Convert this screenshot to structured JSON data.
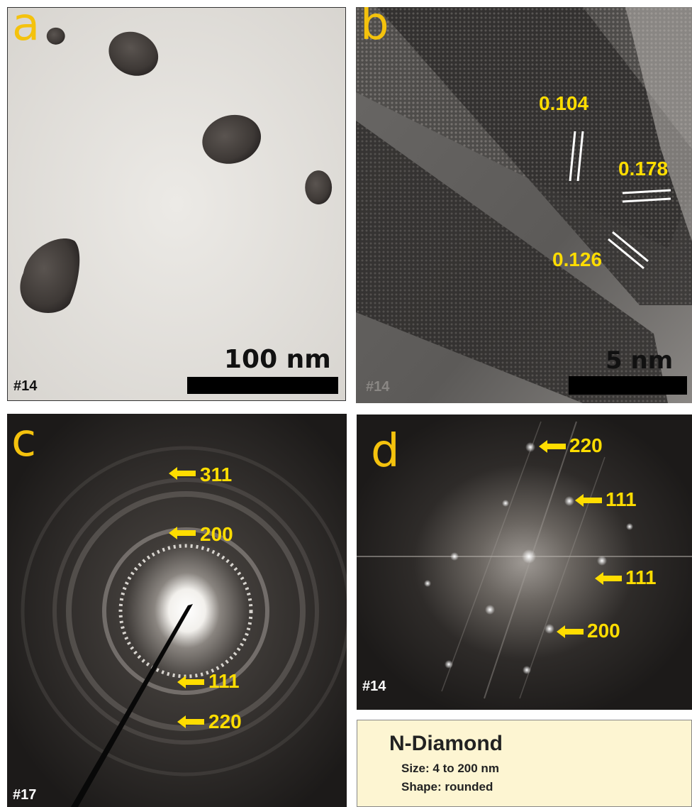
{
  "panels": {
    "a": {
      "letter": "a",
      "tag": "#14",
      "scale": "100 nm"
    },
    "b": {
      "letter": "b",
      "tag": "#14",
      "scale": "5 nm",
      "spacings": [
        "0.104",
        "0.178",
        "0.126"
      ]
    },
    "c": {
      "letter": "c",
      "tag": "#17",
      "rings": [
        "311",
        "200",
        "111",
        "220"
      ]
    },
    "d": {
      "letter": "d",
      "tag": "#14",
      "spots": [
        "220",
        "111",
        "111",
        "200"
      ]
    }
  },
  "info": {
    "title": "N-Diamond",
    "size": "Size:  4 to 200 nm",
    "shape": "Shape: rounded"
  },
  "colors": {
    "label_yellow": "#ffdd00",
    "panel_letter": "#f4c20d",
    "info_bg": "#fdf5d2"
  }
}
